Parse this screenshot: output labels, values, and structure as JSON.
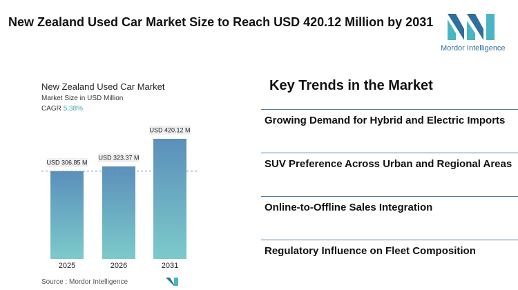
{
  "title": "New Zealand Used Car Market Size to Reach USD 420.12 Million by 2031",
  "logo": {
    "text": "Mordor Intelligence"
  },
  "chart_data": {
    "type": "bar",
    "title": "New Zealand Used Car Market",
    "subtitle": "Market Size in USD Million",
    "cagr_label": "CAGR",
    "cagr_value": "5.38%",
    "categories": [
      "2025",
      "2026",
      "2031"
    ],
    "values": [
      306.85,
      323.37,
      420.12
    ],
    "value_labels": [
      "USD 306.85 M",
      "USD 323.37 M",
      "USD 420.12 M"
    ],
    "color_top": "#5b8fbb",
    "color_bottom": "#7ccaca",
    "source": "Source : Mordor Intelligence"
  },
  "trends": {
    "title": "Key Trends in the Market",
    "items": [
      "Growing Demand for Hybrid and Electric Imports",
      "SUV Preference Across Urban and Regional Areas",
      "Online-to-Offline Sales Integration",
      "Regulatory Influence on Fleet Composition"
    ]
  }
}
